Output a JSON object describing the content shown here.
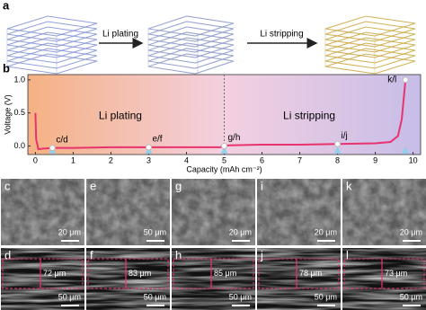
{
  "panel_a": {
    "label": "a",
    "steps": [
      "Li plating",
      "Li stripping"
    ]
  },
  "chart_data": {
    "type": "line",
    "label": "b",
    "x_label": "Capacity (mAh cm⁻²)",
    "y_label": "Voltage (V)",
    "xlim": [
      -0.2,
      10.2
    ],
    "ylim": [
      -0.13,
      1.08
    ],
    "xticks": [
      0,
      1,
      2,
      3,
      4,
      5,
      6,
      7,
      8,
      9,
      10
    ],
    "yticks": [
      {
        "value": 0,
        "label": "0.0"
      },
      0.5,
      {
        "value": 1,
        "label": "1.0"
      }
    ],
    "regions": [
      "Li plating",
      "Li stripping"
    ],
    "divider_x": 5,
    "series": [
      {
        "color": "#e8336f",
        "x": [
          0,
          0.02,
          0.08,
          0.2,
          0.5,
          1,
          2,
          3,
          4,
          4.9,
          5,
          5.1,
          6,
          7,
          8,
          9,
          9.4,
          9.6,
          9.7,
          9.75,
          9.8
        ],
        "values": [
          0.5,
          0.1,
          -0.05,
          -0.04,
          -0.03,
          -0.03,
          -0.02,
          -0.02,
          -0.02,
          -0.02,
          0,
          0.01,
          0.02,
          0.02,
          0.03,
          0.04,
          0.06,
          0.15,
          0.4,
          0.7,
          1.0
        ]
      }
    ],
    "points": [
      {
        "label": "c/d",
        "x": 0.45,
        "y": -0.03
      },
      {
        "label": "e/f",
        "x": 3,
        "y": -0.02
      },
      {
        "label": "g/h",
        "x": 5,
        "y": 0
      },
      {
        "label": "i/j",
        "x": 8,
        "y": 0.03
      },
      {
        "label": "k/l",
        "x": 9.8,
        "y": 1.0
      }
    ]
  },
  "sem_panels": [
    {
      "label": "c",
      "scale_bar": "20 μm"
    },
    {
      "label": "d",
      "scale_bar": "50 μm",
      "thickness": "72 μm"
    },
    {
      "label": "e",
      "scale_bar": "50 μm"
    },
    {
      "label": "f",
      "scale_bar": "50 μm",
      "thickness": "83 μm"
    },
    {
      "label": "g",
      "scale_bar": "20 μm"
    },
    {
      "label": "h",
      "scale_bar": "50 μm",
      "thickness": "85 μm"
    },
    {
      "label": "i",
      "scale_bar": "20 μm"
    },
    {
      "label": "j",
      "scale_bar": "50 μm",
      "thickness": "78 μm"
    },
    {
      "label": "k",
      "scale_bar": "20 μm"
    },
    {
      "label": "l",
      "scale_bar": "50 μm",
      "thickness": "73 μm"
    }
  ]
}
